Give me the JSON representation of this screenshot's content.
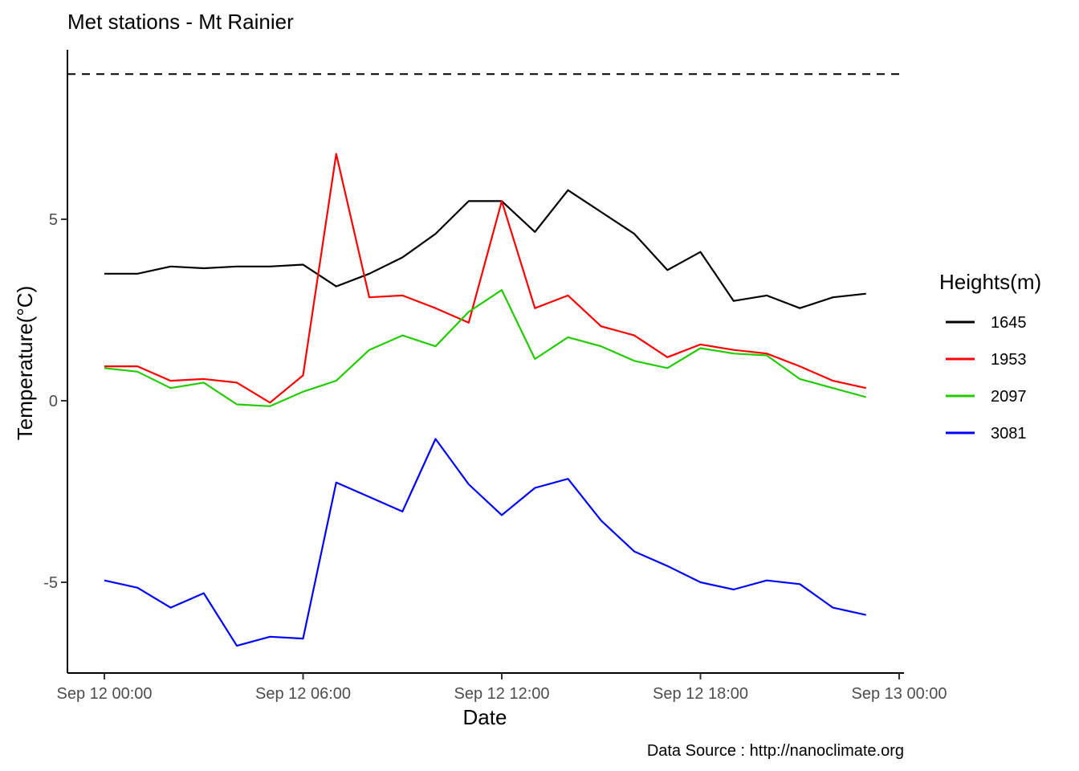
{
  "chart_data": {
    "type": "line",
    "title": "Met stations -  Mt Rainier",
    "xlabel": "Date",
    "ylabel": "Temperature(°C)",
    "caption": "Data Source : http://nanoclimate.org",
    "legend_title": "Heights(m)",
    "legend_position": "right",
    "grid": false,
    "xlim": [
      "2023-09-11 22:52",
      "2023-09-13 00:12"
    ],
    "ylim": [
      -7.5,
      9.3
    ],
    "x_ticks": [
      "Sep 12 00:00",
      "Sep 12 06:00",
      "Sep 12 12:00",
      "Sep 12 18:00",
      "Sep 13 00:00"
    ],
    "y_ticks": [
      "-5",
      "0",
      "5"
    ],
    "y_tick_values": [
      -5,
      0,
      5
    ],
    "reference_line": {
      "y": 9.0,
      "style": "dashed",
      "color": "#000000"
    },
    "x": [
      "00:00",
      "01:00",
      "02:00",
      "03:00",
      "04:00",
      "05:00",
      "06:00",
      "07:00",
      "08:00",
      "09:00",
      "10:00",
      "11:00",
      "12:00",
      "13:00",
      "14:00",
      "15:00",
      "16:00",
      "17:00",
      "18:00",
      "19:00",
      "20:00",
      "21:00",
      "22:00",
      "23:00"
    ],
    "series": [
      {
        "name": "1645",
        "color": "#000000",
        "values": [
          3.5,
          3.5,
          3.7,
          3.65,
          3.7,
          3.7,
          3.75,
          3.15,
          3.5,
          3.95,
          4.6,
          5.5,
          5.5,
          4.65,
          5.8,
          5.2,
          4.6,
          3.6,
          4.1,
          2.75,
          2.9,
          2.55,
          2.85,
          2.95
        ]
      },
      {
        "name": "1953",
        "color": "#ff0000",
        "values": [
          0.95,
          0.95,
          0.55,
          0.6,
          0.5,
          -0.05,
          0.7,
          6.8,
          2.85,
          2.9,
          2.55,
          2.15,
          5.5,
          2.55,
          2.9,
          2.05,
          1.8,
          1.2,
          1.55,
          1.4,
          1.3,
          0.95,
          0.55,
          0.35
        ]
      },
      {
        "name": "2097",
        "color": "#22cc00",
        "values": [
          0.9,
          0.8,
          0.35,
          0.5,
          -0.1,
          -0.15,
          0.25,
          0.55,
          1.4,
          1.8,
          1.5,
          2.45,
          3.05,
          1.15,
          1.75,
          1.5,
          1.1,
          0.9,
          1.45,
          1.3,
          1.25,
          0.6,
          0.35,
          0.1
        ]
      },
      {
        "name": "3081",
        "color": "#0000ff",
        "values": [
          -4.95,
          -5.15,
          -5.7,
          -5.3,
          -6.75,
          -6.5,
          -6.55,
          -2.25,
          -2.65,
          -3.05,
          -1.05,
          -2.3,
          -3.15,
          -2.4,
          -2.15,
          -3.3,
          -4.15,
          -4.55,
          -5.0,
          -5.2,
          -4.95,
          -5.05,
          -5.7,
          -5.9
        ]
      }
    ]
  }
}
